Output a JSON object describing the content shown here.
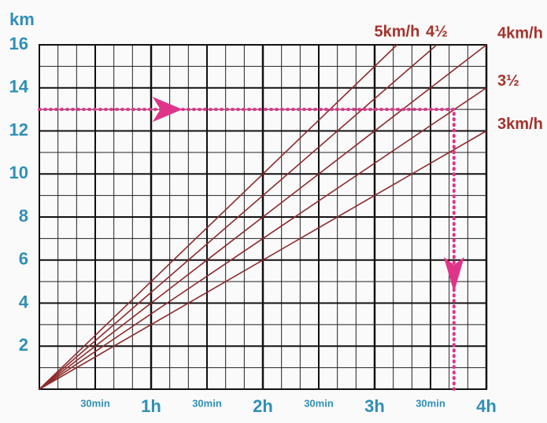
{
  "chart_data": {
    "type": "line",
    "y_label": "km",
    "xlim": [
      0,
      4
    ],
    "ylim": [
      0,
      16
    ],
    "xticks": [
      {
        "value": 0.5,
        "label": "30min"
      },
      {
        "value": 1,
        "label": "1h"
      },
      {
        "value": 1.5,
        "label": "30min"
      },
      {
        "value": 2,
        "label": "2h"
      },
      {
        "value": 2.5,
        "label": "30min"
      },
      {
        "value": 3,
        "label": "3h"
      },
      {
        "value": 3.5,
        "label": "30min"
      },
      {
        "value": 4,
        "label": "4h"
      }
    ],
    "yticks": [
      2,
      4,
      6,
      8,
      10,
      12,
      14,
      16
    ],
    "grid": true,
    "minor_grid": true,
    "series": [
      {
        "name": "5km/h",
        "color": "#8e2b2b",
        "x": [
          0,
          3.2
        ],
        "values": [
          0,
          16
        ]
      },
      {
        "name": "4½",
        "color": "#8e2b2b",
        "x": [
          0,
          3.556
        ],
        "values": [
          0,
          16
        ]
      },
      {
        "name": "4km/h",
        "color": "#8e2b2b",
        "x": [
          0,
          4
        ],
        "values": [
          0,
          16
        ]
      },
      {
        "name": "3½",
        "color": "#8e2b2b",
        "x": [
          0,
          4
        ],
        "values": [
          0,
          14
        ]
      },
      {
        "name": "3km/h",
        "color": "#8e2b2b",
        "x": [
          0,
          4
        ],
        "values": [
          0,
          12
        ]
      }
    ],
    "example": {
      "x": 3.71,
      "y": 13,
      "color": "#e0348a"
    }
  }
}
